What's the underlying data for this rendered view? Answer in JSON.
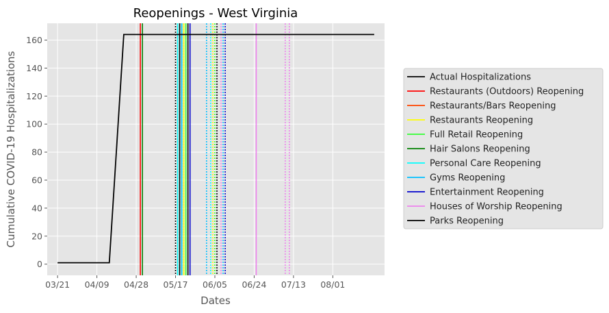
{
  "chart_data": {
    "type": "line",
    "title": "Reopenings - West Virginia",
    "xlabel": "Dates",
    "ylabel": "Cumulative COVID-19 Hospitalizations",
    "grid": true,
    "legend_position": "right-outside",
    "xlim": [
      "03/16",
      "08/26"
    ],
    "ylim": [
      -8,
      172
    ],
    "xticks": [
      "03/21",
      "04/09",
      "04/28",
      "05/17",
      "06/05",
      "06/24",
      "07/13",
      "08/01"
    ],
    "yticks": [
      0,
      20,
      40,
      60,
      80,
      100,
      120,
      140,
      160
    ],
    "series": [
      {
        "name": "Actual Hospitalizations",
        "color": "#000000",
        "style": "solid",
        "x": [
          "03/21",
          "04/15",
          "04/22",
          "08/21"
        ],
        "y": [
          1,
          1,
          164,
          164
        ]
      }
    ],
    "vlines": [
      {
        "name": "Restaurants (Outdoors) Reopening",
        "color": "#ff0000",
        "style": "solid",
        "x": [
          "04/30"
        ]
      },
      {
        "name": "Restaurants/Bars Reopening",
        "color": "#ff4500",
        "style": "solid",
        "x": []
      },
      {
        "name": "Restaurants Reopening",
        "color": "#ffff00",
        "style": "solid",
        "x": [
          "05/21"
        ]
      },
      {
        "name": "Full Retail Reopening",
        "color": "#32ff32",
        "style": "solid",
        "x": [
          "05/20",
          "05/22"
        ]
      },
      {
        "name": "Hair Salons Reopening",
        "color": "#008000",
        "style": "solid",
        "x": [
          "05/01"
        ]
      },
      {
        "name": "Personal Care Reopening",
        "color": "#00ffff",
        "style": "solid",
        "x": [
          "05/18"
        ]
      },
      {
        "name": "Gyms Reopening",
        "color": "#00bfff",
        "style": "solid",
        "x": [
          "05/20"
        ]
      },
      {
        "name": "Entertainment Reopening",
        "color": "#0000cd",
        "style": "solid",
        "x": [
          "05/24"
        ]
      },
      {
        "name": "Houses of Worship Reopening",
        "color": "#ee82ee",
        "style": "solid",
        "x": [
          "06/25"
        ]
      },
      {
        "name": "Parks Reopening",
        "color": "#000000",
        "style": "solid",
        "x": [
          "05/19",
          "05/23"
        ]
      }
    ],
    "projected_vlines": [
      {
        "color": "#000000",
        "x": [
          "05/17"
        ]
      },
      {
        "color": "#00ffff",
        "x": [
          "05/19"
        ]
      },
      {
        "color": "#32ff32",
        "x": [
          "05/21"
        ]
      },
      {
        "color": "#00bfff",
        "x": [
          "06/01",
          "06/09"
        ]
      },
      {
        "color": "#00ffff",
        "x": [
          "06/03"
        ]
      },
      {
        "color": "#ffff00",
        "x": [
          "06/04"
        ]
      },
      {
        "color": "#32ff32",
        "x": [
          "06/05"
        ]
      },
      {
        "color": "#000000",
        "x": [
          "06/06"
        ]
      },
      {
        "color": "#ee82ee",
        "x": [
          "06/08",
          "07/09",
          "07/11"
        ]
      },
      {
        "color": "#0000cd",
        "x": [
          "06/10"
        ]
      }
    ]
  }
}
